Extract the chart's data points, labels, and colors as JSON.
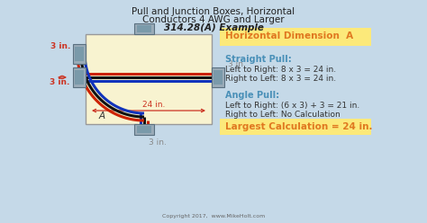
{
  "bg_color": "#c5d9e8",
  "title_line1": "Pull and Junction Boxes, Horizontal",
  "title_line2": "Conductors 4 AWG and Larger",
  "title_line3": "314.28(A) Example",
  "box_color": "#f8f3d0",
  "horiz_dim_label": "Horizontal Dimension  A",
  "horiz_dim_color": "#fce97a",
  "straight_pull_title": "Straight Pull:",
  "straight_pull_line1": "Left to Right: 8 x 3 = 24 in.",
  "straight_pull_line2": "Right to Left: 8 x 3 = 24 in.",
  "angle_pull_title": "Angle Pull:",
  "angle_pull_line1": "Left to Right: (6 x 3) + 3 = 21 in.",
  "angle_pull_line2": "Right to Left: No Calculation",
  "largest_calc_label": "Largest Calculation = 24 in.",
  "largest_calc_color": "#fce97a",
  "teal_color": "#4a90b8",
  "orange_color": "#e07820",
  "body_text_color": "#333333",
  "red_dim_color": "#cc3322",
  "gray_dim_color": "#888888",
  "connector_color": "#9aabb8",
  "connector_dark": "#5a7080",
  "wire_red": "#cc2200",
  "wire_black": "#111111",
  "wire_blue": "#1133bb",
  "wire_dark_red": "#8b1a0a",
  "copyright": "Copyright 2017,  www.MikeHolt.com"
}
